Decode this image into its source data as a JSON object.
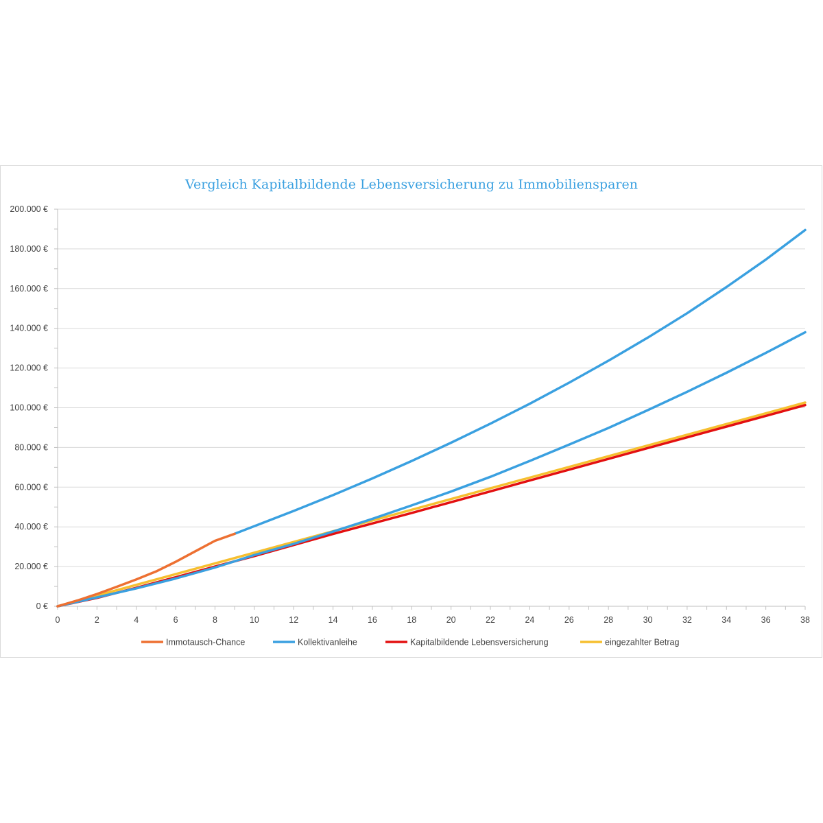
{
  "chart_data": {
    "type": "line",
    "title": "Vergleich Kapitalbildende Lebensversicherung zu Immobiliensparen",
    "title_color": "#3aa0e0",
    "xlabel": "",
    "ylabel": "",
    "xlim": [
      0,
      38
    ],
    "ylim": [
      0,
      200000
    ],
    "x_ticks": [
      "0",
      "2",
      "4",
      "6",
      "8",
      "10",
      "12",
      "14",
      "16",
      "18",
      "20",
      "22",
      "24",
      "26",
      "28",
      "30",
      "32",
      "34",
      "36",
      "38"
    ],
    "y_ticks": [
      "0 €",
      "20.000 €",
      "40.000 €",
      "60.000 €",
      "80.000 €",
      "100.000 €",
      "120.000 €",
      "140.000 €",
      "160.000 €",
      "180.000 €",
      "200.000 €"
    ],
    "grid": "horizontal",
    "legend_position": "bottom",
    "series": [
      {
        "name": "eingezahlter Betrag",
        "color": "#f6bf2f",
        "x": [
          0,
          38
        ],
        "values": [
          0,
          102600
        ]
      },
      {
        "name": "Kapitalbildende Lebensversicherung",
        "color": "#e31010",
        "x": [
          0,
          2,
          4,
          6,
          8,
          10,
          14,
          18,
          22,
          26,
          30,
          34,
          38
        ],
        "values": [
          0,
          4200,
          9300,
          14600,
          20000,
          25300,
          36400,
          47000,
          57900,
          68800,
          79700,
          90500,
          101300
        ]
      },
      {
        "name": "Kollektivanleihe",
        "color": "#3aa0e0",
        "x": [
          0,
          2,
          4,
          6,
          8,
          10,
          12,
          14,
          16,
          18,
          20,
          22,
          24,
          26,
          28,
          30,
          32,
          34,
          36,
          38
        ],
        "values": [
          0,
          4500,
          9000,
          14000,
          19500,
          25800,
          31400,
          37600,
          44000,
          50800,
          57800,
          65200,
          73200,
          81400,
          89800,
          98800,
          108000,
          117600,
          127600,
          138000
        ]
      },
      {
        "name": "Kollektivanleihe",
        "color": "#3aa0e0",
        "x": [
          9,
          12,
          14,
          16,
          18,
          20,
          22,
          24,
          26,
          28,
          30,
          32,
          34,
          36,
          38
        ],
        "values": [
          36500,
          48000,
          56000,
          64400,
          73200,
          82400,
          92000,
          102000,
          112600,
          123700,
          135300,
          147600,
          160800,
          174600,
          189500
        ]
      },
      {
        "name": "Immotausch-Chance",
        "color": "#ed7032",
        "x": [
          0,
          1,
          2,
          3,
          4,
          5,
          6,
          7,
          8,
          9
        ],
        "values": [
          0,
          2900,
          6200,
          9800,
          13500,
          17500,
          22400,
          27700,
          33000,
          36500
        ]
      }
    ],
    "legend": [
      {
        "name": "Immotausch-Chance",
        "color": "#ed7032"
      },
      {
        "name": "Kollektivanleihe",
        "color": "#3aa0e0"
      },
      {
        "name": "Kapitalbildende Lebensversicherung",
        "color": "#e31010"
      },
      {
        "name": "eingezahlter Betrag",
        "color": "#f6bf2f"
      }
    ]
  }
}
